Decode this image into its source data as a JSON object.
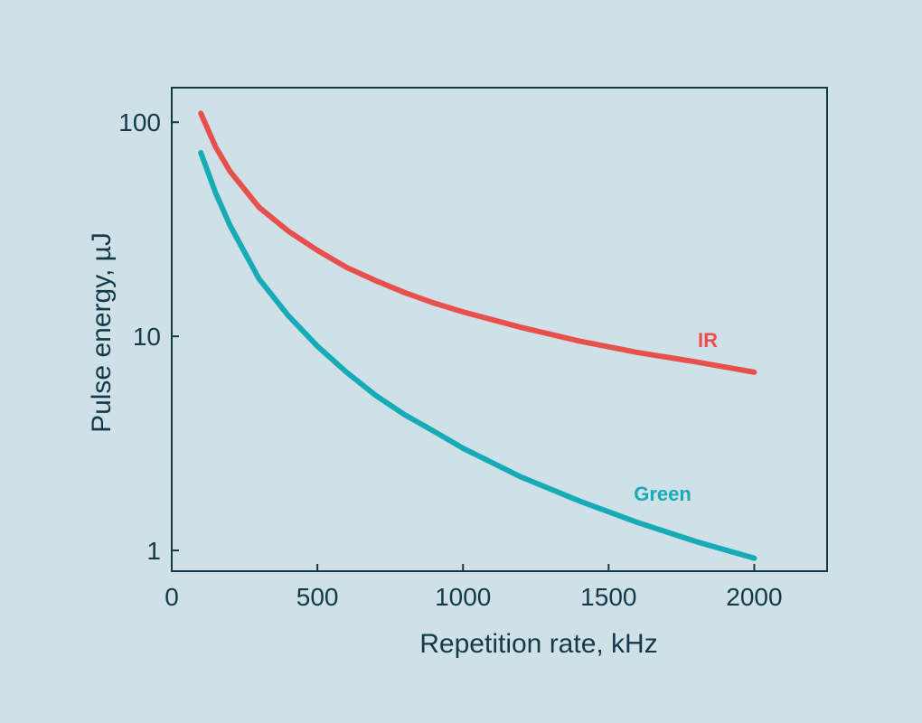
{
  "chart_data": {
    "type": "line",
    "title": "",
    "xlabel": "Repetition rate, kHz",
    "ylabel": "Pulse energy, µJ",
    "xlim": [
      0,
      2250
    ],
    "ylim": [
      0.8,
      145
    ],
    "y_scale": "log",
    "x_ticks": [
      0,
      500,
      1000,
      1500,
      2000
    ],
    "x_tick_labels": [
      "0",
      "500",
      "1000",
      "1500",
      "2000"
    ],
    "y_ticks": [
      1,
      10,
      100
    ],
    "y_tick_labels": [
      "1",
      "10",
      "100"
    ],
    "grid": false,
    "legend": "none",
    "series": [
      {
        "name": "IR",
        "color": "#e8504e",
        "x": [
          100,
          150,
          200,
          300,
          400,
          500,
          600,
          700,
          800,
          900,
          1000,
          1200,
          1400,
          1600,
          1800,
          2000
        ],
        "y": [
          110,
          77,
          59,
          40,
          31,
          25.2,
          21,
          18.2,
          16.0,
          14.3,
          13.0,
          11.0,
          9.5,
          8.4,
          7.6,
          6.8
        ]
      },
      {
        "name": "Green",
        "color": "#17abb8",
        "x": [
          100,
          150,
          200,
          300,
          400,
          500,
          600,
          700,
          800,
          900,
          1000,
          1200,
          1400,
          1600,
          1800,
          2000
        ],
        "y": [
          72,
          47,
          33,
          18.5,
          12.5,
          9.0,
          6.8,
          5.3,
          4.3,
          3.6,
          3.0,
          2.2,
          1.7,
          1.35,
          1.1,
          0.92
        ]
      }
    ]
  }
}
